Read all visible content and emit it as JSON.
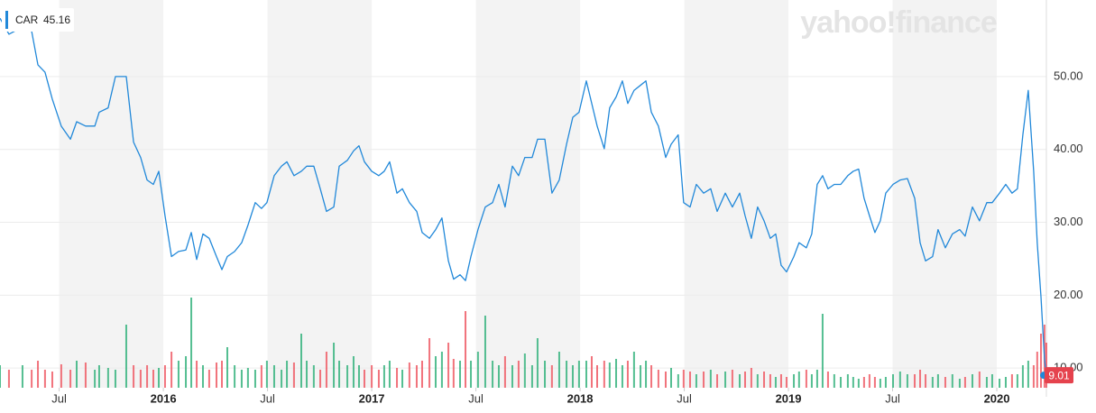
{
  "chart_data": {
    "type": "line",
    "watermark": "yahoo!finance",
    "legend_value": 45.16,
    "last_value": 9.01,
    "last_color": "#e5424d",
    "shade_color": "#f3f3f3",
    "grid": true,
    "xlim": [
      2015.216,
      2020.238
    ],
    "xticks": [
      {
        "value": 2015.5,
        "label": "Jul"
      },
      {
        "value": 2016.0,
        "label": "2016"
      },
      {
        "value": 2016.5,
        "label": "Jul"
      },
      {
        "value": 2017.0,
        "label": "2017"
      },
      {
        "value": 2017.5,
        "label": "Jul"
      },
      {
        "value": 2018.0,
        "label": "2018"
      },
      {
        "value": 2018.5,
        "label": "Jul"
      },
      {
        "value": 2019.0,
        "label": "2019"
      },
      {
        "value": 2019.5,
        "label": "Jul"
      },
      {
        "value": 2020.0,
        "label": "2020"
      }
    ],
    "ylim": [
      7.3,
      60.5
    ],
    "yticks": [
      {
        "value": 10,
        "label": "10.00"
      },
      {
        "value": 20,
        "label": "20.00"
      },
      {
        "value": 30,
        "label": "30.00"
      },
      {
        "value": 40,
        "label": "40.00"
      },
      {
        "value": 50,
        "label": "50.00"
      }
    ],
    "y2lim": [
      0,
      12
    ],
    "x": [
      2015.216,
      2015.259,
      2015.324,
      2015.368,
      2015.398,
      2015.432,
      2015.467,
      2015.51,
      2015.554,
      2015.584,
      2015.627,
      2015.671,
      2015.692,
      2015.735,
      2015.77,
      2015.822,
      2015.857,
      2015.891,
      2015.922,
      2015.952,
      2015.978,
      2016.008,
      2016.039,
      2016.073,
      2016.108,
      2016.134,
      2016.16,
      2016.19,
      2016.22,
      2016.255,
      2016.281,
      2016.307,
      2016.342,
      2016.376,
      2016.406,
      2016.441,
      2016.471,
      2016.497,
      2016.532,
      2016.567,
      2016.593,
      2016.627,
      2016.662,
      2016.688,
      2016.722,
      2016.753,
      2016.783,
      2016.818,
      2016.844,
      2016.883,
      2016.913,
      2016.939,
      2016.965,
      2017.0,
      2017.034,
      2017.06,
      2017.086,
      2017.121,
      2017.147,
      2017.181,
      2017.216,
      2017.242,
      2017.277,
      2017.307,
      2017.337,
      2017.368,
      2017.393,
      2017.424,
      2017.45,
      2017.476,
      2017.51,
      2017.545,
      2017.58,
      2017.61,
      2017.64,
      2017.675,
      2017.705,
      2017.735,
      2017.77,
      2017.796,
      2017.831,
      2017.865,
      2017.9,
      2017.935,
      2017.965,
      2017.995,
      2018.03,
      2018.056,
      2018.082,
      2018.116,
      2018.142,
      2018.173,
      2018.203,
      2018.229,
      2018.259,
      2018.29,
      2018.316,
      2018.342,
      2018.376,
      2018.411,
      2018.437,
      2018.471,
      2018.497,
      2018.528,
      2018.558,
      2018.593,
      2018.627,
      2018.658,
      2018.697,
      2018.731,
      2018.766,
      2018.792,
      2018.822,
      2018.852,
      2018.883,
      2018.913,
      2018.939,
      2018.965,
      2018.991,
      2019.026,
      2019.051,
      2019.086,
      2019.112,
      2019.138,
      2019.164,
      2019.19,
      2019.22,
      2019.251,
      2019.285,
      2019.311,
      2019.337,
      2019.363,
      2019.389,
      2019.415,
      2019.441,
      2019.467,
      2019.502,
      2019.536,
      2019.571,
      2019.606,
      2019.632,
      2019.658,
      2019.692,
      2019.718,
      2019.753,
      2019.787,
      2019.822,
      2019.848,
      2019.883,
      2019.917,
      2019.952,
      2019.978,
      2020.013,
      2020.043,
      2020.073,
      2020.099,
      2020.125,
      2020.151,
      2020.177,
      2020.194,
      2020.212,
      2020.229,
      2020.238
    ],
    "series": [
      {
        "name": "CAR",
        "color": "#2188d9",
        "values": [
          58.0,
          55.8,
          56.8,
          56.2,
          51.6,
          50.6,
          46.9,
          43.2,
          41.4,
          43.8,
          43.2,
          43.2,
          45.1,
          45.7,
          50.0,
          50.0,
          41.0,
          38.9,
          35.8,
          35.2,
          37.0,
          30.9,
          25.3,
          26.0,
          26.2,
          28.6,
          24.9,
          28.4,
          27.8,
          25.3,
          23.5,
          25.3,
          26.0,
          27.2,
          29.6,
          32.7,
          31.9,
          32.7,
          36.4,
          37.7,
          38.3,
          36.4,
          37.0,
          37.7,
          37.7,
          34.6,
          31.5,
          32.1,
          37.7,
          38.5,
          39.8,
          40.5,
          38.3,
          37.0,
          36.4,
          37.0,
          38.3,
          34.0,
          34.6,
          32.7,
          31.5,
          28.6,
          27.8,
          29.0,
          30.6,
          24.7,
          22.2,
          22.8,
          22.0,
          25.3,
          29.0,
          32.1,
          32.7,
          35.2,
          32.1,
          37.7,
          36.4,
          38.9,
          38.9,
          41.4,
          41.4,
          34.0,
          35.8,
          40.7,
          44.4,
          45.1,
          49.4,
          46.3,
          43.2,
          40.1,
          45.7,
          47.2,
          49.4,
          46.3,
          48.1,
          48.8,
          49.4,
          45.1,
          43.2,
          38.9,
          40.7,
          42.0,
          32.7,
          32.1,
          35.2,
          34.0,
          34.6,
          31.5,
          34.0,
          32.1,
          34.0,
          30.9,
          27.8,
          32.1,
          30.2,
          27.8,
          28.4,
          24.1,
          23.2,
          25.3,
          27.2,
          26.5,
          28.4,
          35.2,
          36.4,
          34.6,
          35.2,
          35.2,
          36.4,
          37.0,
          37.3,
          33.3,
          30.9,
          28.6,
          30.2,
          34.0,
          35.2,
          35.8,
          36.0,
          33.3,
          27.2,
          24.7,
          25.3,
          29.0,
          26.5,
          28.4,
          29.0,
          28.1,
          32.1,
          30.2,
          32.7,
          32.7,
          34.0,
          35.2,
          34.0,
          34.6,
          42.0,
          48.1,
          37.0,
          27.2,
          19.8,
          11.2,
          9.01
        ]
      }
    ],
    "volume": {
      "up_color": "#36b37e",
      "down_color": "#ef5a65",
      "values": [
        2.5,
        2,
        2.5,
        2,
        3,
        2,
        1.8,
        2.6,
        2,
        3,
        2.8,
        2,
        2.5,
        2.2,
        2,
        7,
        2.5,
        2,
        2.5,
        2,
        2.2,
        2.5,
        4,
        3,
        3.5,
        10,
        3,
        2.5,
        2,
        2.8,
        3,
        4.5,
        2.5,
        2,
        2.2,
        2,
        2.5,
        3,
        2.5,
        2,
        3,
        2.8,
        6,
        3,
        2.5,
        2,
        4,
        5,
        3,
        2.5,
        3.5,
        2.5,
        2,
        2.5,
        2,
        2.5,
        3,
        2.2,
        2,
        2.8,
        2.5,
        3,
        5.5,
        3.5,
        4,
        5,
        3.2,
        3,
        8.5,
        3,
        4,
        8,
        3,
        2.5,
        3.5,
        2.5,
        3,
        3.8,
        2.5,
        5.5,
        3,
        2.5,
        4,
        3,
        2.5,
        3,
        3,
        3.5,
        2.5,
        3,
        2.8,
        3.2,
        2.5,
        3,
        4,
        2.5,
        3,
        2.5,
        2,
        1.8,
        2.2,
        1.5,
        2,
        1.8,
        1.5,
        1.8,
        2,
        1.5,
        1.8,
        2,
        1.5,
        1.8,
        2.2,
        1.5,
        1.8,
        1.5,
        1.2,
        1.5,
        1.2,
        1.5,
        1.8,
        2,
        1.5,
        2,
        8.2,
        1.8,
        1.5,
        1.2,
        1.5,
        1.2,
        1,
        1.2,
        1.5,
        1.2,
        1,
        1.2,
        1.5,
        1.8,
        1.5,
        1.5,
        2,
        1.5,
        1.2,
        1.5,
        1.2,
        1.5,
        1,
        1.2,
        1.5,
        1.8,
        1.2,
        1.5,
        1,
        1.2,
        1.5,
        1.5,
        2.5,
        3,
        2.5,
        4,
        6,
        7,
        5
      ]
    }
  }
}
